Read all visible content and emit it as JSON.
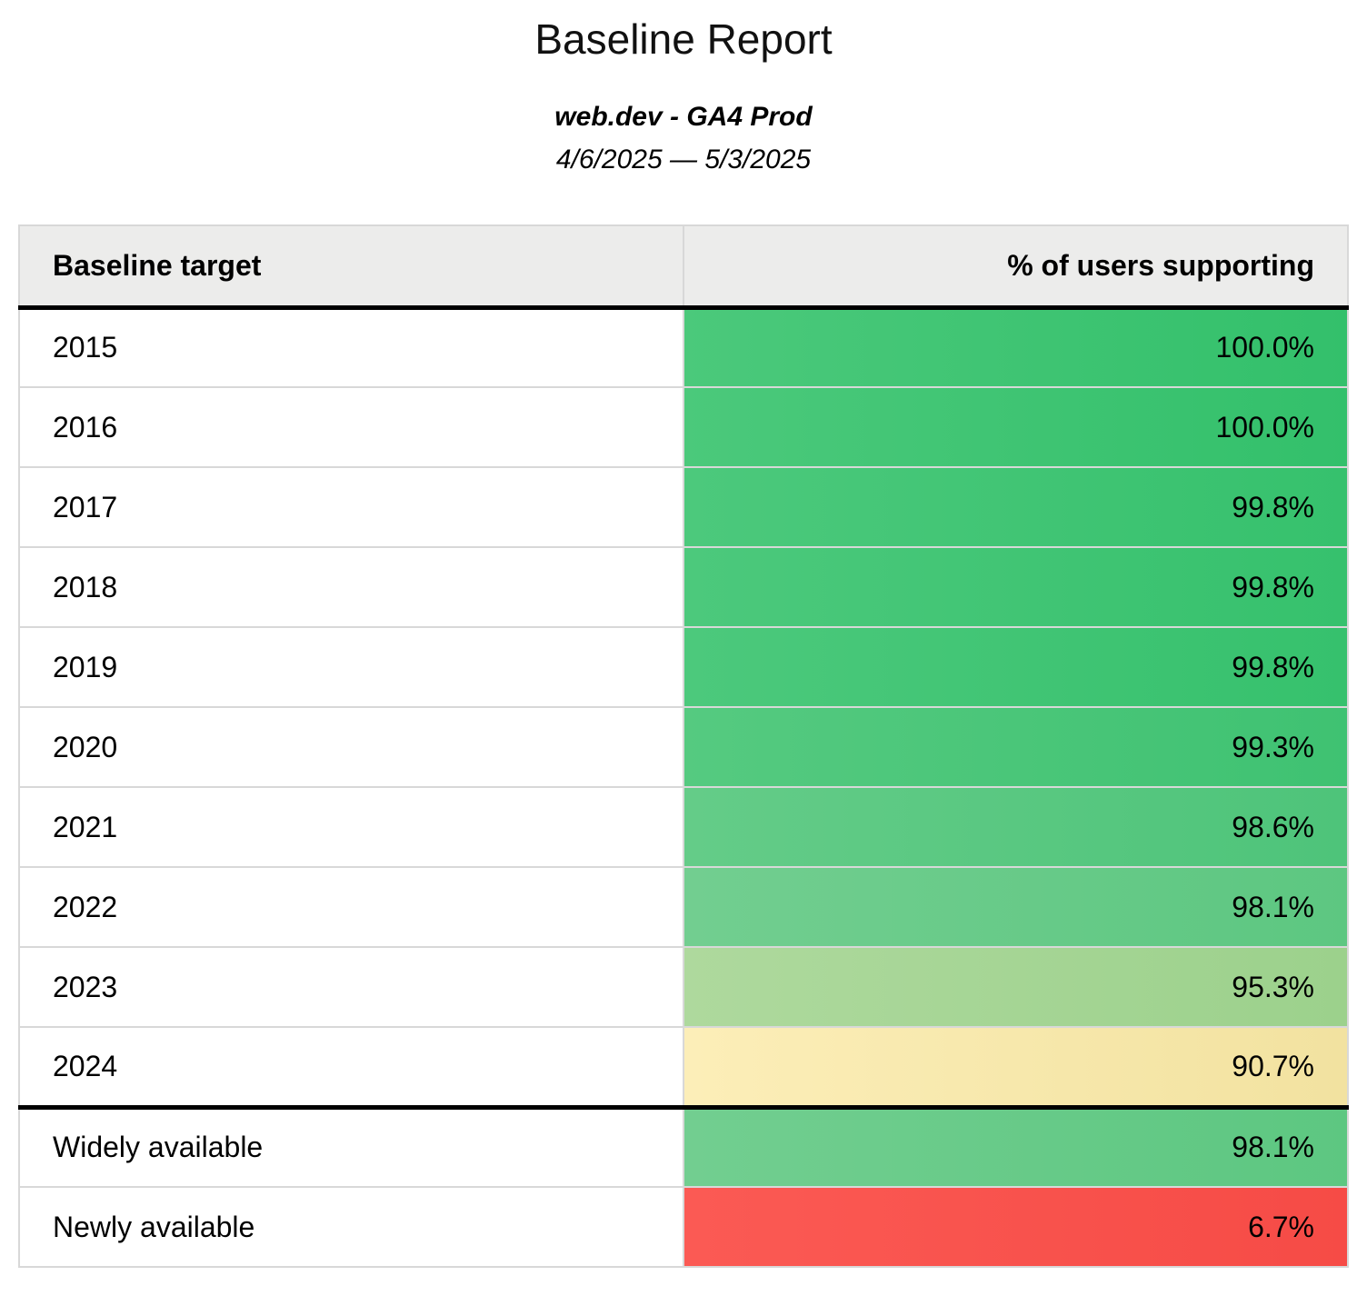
{
  "report": {
    "title": "Baseline Report",
    "subtitle": "web.dev - GA4 Prod",
    "date_range": "4/6/2025 — 5/3/2025"
  },
  "colors": {
    "header_background": "#ececeb",
    "grid_border": "#d8d8d8",
    "section_divider": "#000000",
    "green_high": "#33c06b",
    "green_mid": "#5dc781",
    "green_low": "#9cd18c",
    "yellow_warn": "#f2e2a0",
    "red_bad": "#f64b46"
  },
  "table": {
    "columns": [
      "Baseline target",
      "% of users supporting"
    ],
    "rows": [
      {
        "label": "2015",
        "value": "100.0%",
        "bg": "linear-gradient(90deg,#4bc97b,#33c06b)"
      },
      {
        "label": "2016",
        "value": "100.0%",
        "bg": "linear-gradient(90deg,#4bc97b,#33c06b)"
      },
      {
        "label": "2017",
        "value": "99.8%",
        "bg": "linear-gradient(90deg,#4cc97c,#36c16d)"
      },
      {
        "label": "2018",
        "value": "99.8%",
        "bg": "linear-gradient(90deg,#4cc97c,#36c16d)"
      },
      {
        "label": "2019",
        "value": "99.8%",
        "bg": "linear-gradient(90deg,#4cc97c,#36c16d)"
      },
      {
        "label": "2020",
        "value": "99.3%",
        "bg": "linear-gradient(90deg,#55ca80,#3fc272)"
      },
      {
        "label": "2021",
        "value": "98.6%",
        "bg": "linear-gradient(90deg,#64cc88,#4ec47a)"
      },
      {
        "label": "2022",
        "value": "98.1%",
        "bg": "linear-gradient(90deg,#72ce90,#5dc781)"
      },
      {
        "label": "2023",
        "value": "95.3%",
        "bg": "linear-gradient(90deg,#aed99d,#9cd18c)"
      },
      {
        "label": "2024",
        "value": "90.7%",
        "bg": "linear-gradient(90deg,#fceeb8,#f2e2a0)"
      },
      {
        "label": "Widely available",
        "value": "98.1%",
        "bg": "linear-gradient(90deg,#72ce90,#5dc781)"
      },
      {
        "label": "Newly available",
        "value": "6.7%",
        "bg": "linear-gradient(90deg,#fb5a54,#f64b46)"
      }
    ]
  },
  "chart_data": {
    "type": "table",
    "title": "Baseline Report",
    "categories": [
      "2015",
      "2016",
      "2017",
      "2018",
      "2019",
      "2020",
      "2021",
      "2022",
      "2023",
      "2024",
      "Widely available",
      "Newly available"
    ],
    "values": [
      100.0,
      100.0,
      99.8,
      99.8,
      99.8,
      99.3,
      98.6,
      98.1,
      95.3,
      90.7,
      98.1,
      6.7
    ],
    "value_unit": "%",
    "xlabel": "Baseline target",
    "ylabel": "% of users supporting"
  }
}
